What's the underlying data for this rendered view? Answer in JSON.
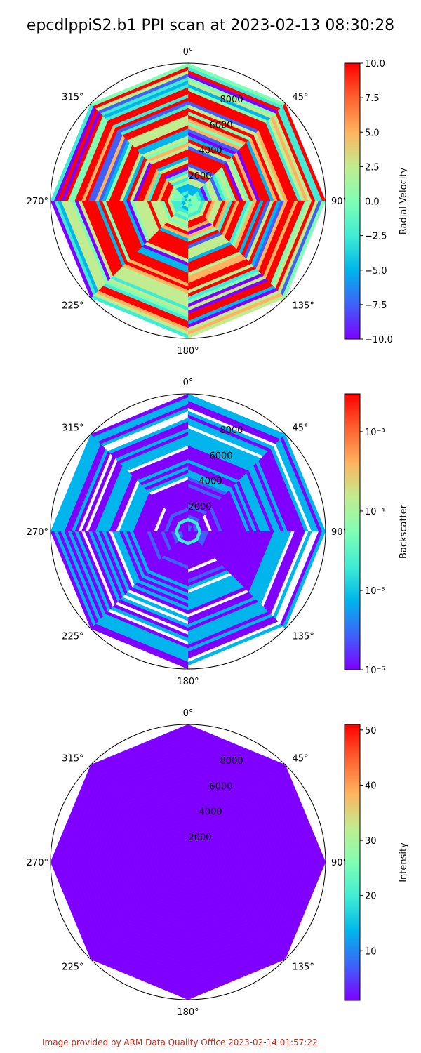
{
  "title": "epcdlppiS2.b1 PPI scan at 2023-02-13 08:30:28",
  "footer": "Image provided by ARM Data Quality Office 2023-02-14 01:57:22",
  "colors": {
    "rainbow": [
      "#7f00ff",
      "#3f61fa",
      "#00b5eb",
      "#40ecd3",
      "#80feb3",
      "#c1ec8f",
      "#ffb360",
      "#ff6130",
      "#ff0000"
    ],
    "footer": "#b03020"
  },
  "chart_data": [
    {
      "type": "heatmap",
      "projection": "polar",
      "theta_ticks": [
        "0°",
        "45°",
        "90°",
        "135°",
        "180°",
        "225°",
        "270°",
        "315°"
      ],
      "r_ticks": [
        "2000",
        "4000",
        "6000",
        "8000"
      ],
      "r_max": 10000,
      "beams": 8,
      "colorbar": {
        "label": "Radial Velocity",
        "scale": "linear",
        "range": [
          -10,
          10
        ],
        "ticks": [
          "10.0",
          "7.5",
          "5.0",
          "2.5",
          "0.0",
          "−2.5",
          "−5.0",
          "−7.5",
          "−10.0"
        ]
      },
      "pattern": "mixed"
    },
    {
      "type": "heatmap",
      "projection": "polar",
      "theta_ticks": [
        "0°",
        "45°",
        "90°",
        "135°",
        "180°",
        "225°",
        "270°",
        "315°"
      ],
      "r_ticks": [
        "2000",
        "4000",
        "6000",
        "8000"
      ],
      "r_max": 10000,
      "beams": 8,
      "colorbar": {
        "label": "Backscatter",
        "scale": "log",
        "range": [
          1e-06,
          0.003
        ],
        "ticks": [
          "10⁻³",
          "10⁻⁴",
          "10⁻⁵",
          "10⁻⁶"
        ]
      },
      "pattern": "low"
    },
    {
      "type": "heatmap",
      "projection": "polar",
      "theta_ticks": [
        "0°",
        "45°",
        "90°",
        "135°",
        "180°",
        "225°",
        "270°",
        "315°"
      ],
      "r_ticks": [
        "2000",
        "4000",
        "6000",
        "8000"
      ],
      "r_max": 10000,
      "beams": 8,
      "colorbar": {
        "label": "Intensity",
        "scale": "linear",
        "range": [
          1,
          51
        ],
        "ticks": [
          "50",
          "40",
          "30",
          "20",
          "10"
        ]
      },
      "pattern": "uniform"
    }
  ]
}
